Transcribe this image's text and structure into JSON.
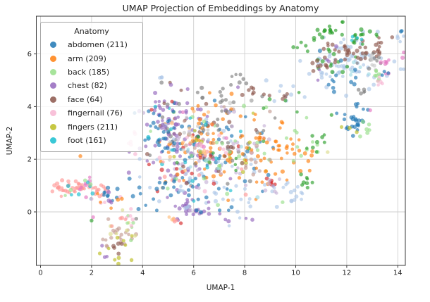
{
  "title": "UMAP Projection of Embeddings by Anatomy",
  "axes": {
    "xlabel": "UMAP-1",
    "ylabel": "UMAP-2",
    "x_ticks": [
      0,
      2,
      4,
      6,
      8,
      10,
      12,
      14
    ],
    "y_ticks": [
      0,
      2,
      4,
      6
    ],
    "xlim": [
      -0.18,
      14.3
    ],
    "ylim": [
      -2.03,
      7.43
    ],
    "grid": true
  },
  "legend": {
    "title": "Anatomy",
    "position": "upper left",
    "entries": [
      {
        "label": "abdomen (211)",
        "color": "#1f77b4"
      },
      {
        "label": "arm (209)",
        "color": "#ff7f0e"
      },
      {
        "label": "back (185)",
        "color": "#98df8a"
      },
      {
        "label": "chest (82)",
        "color": "#9467bd"
      },
      {
        "label": "face (64)",
        "color": "#8c564b"
      },
      {
        "label": "fingernail (76)",
        "color": "#f7b6d2"
      },
      {
        "label": "fingers (211)",
        "color": "#bcbd22"
      },
      {
        "label": "foot (161)",
        "color": "#17becf"
      }
    ]
  },
  "chart_data": {
    "type": "scatter",
    "title": "UMAP Projection of Embeddings by Anatomy",
    "xlabel": "UMAP-1",
    "ylabel": "UMAP-2",
    "xlim": [
      -0.18,
      14.3
    ],
    "ylim": [
      -2.03,
      7.43
    ],
    "point_style": {
      "radius": 2.6,
      "opacity": 0.65
    },
    "palette": {
      "blue": "#1f77b4",
      "lightblue": "#aec7e8",
      "orange": "#ff7f0e",
      "lightorange": "#ffbb78",
      "green": "#2ca02c",
      "lightgreen": "#98df8a",
      "red": "#d62728",
      "salmon": "#ff9896",
      "purple": "#9467bd",
      "lightpurple": "#c5b0d5",
      "brown": "#8c564b",
      "tan": "#c49c94",
      "magenta": "#e377c2",
      "lightpink": "#f7b6d2",
      "gray": "#7f7f7f",
      "lightgray": "#c7c7c7",
      "olive": "#bcbd22",
      "lightolive": "#dbdb8d",
      "cyan": "#17becf",
      "lightcyan": "#9edae5"
    },
    "clusters": [
      {
        "c": "salmon",
        "n": 38,
        "x": 1.15,
        "y": 0.95,
        "rx": 0.5,
        "ry": 0.16
      },
      {
        "c": "salmon",
        "n": 12,
        "x": 2.35,
        "y": 0.8,
        "rx": 0.22,
        "ry": 0.18
      },
      {
        "c": "magenta",
        "n": 8,
        "x": 1.95,
        "y": 1.05,
        "rx": 0.18,
        "ry": 0.22
      },
      {
        "c": "cyan",
        "n": 7,
        "x": 1.5,
        "y": 0.9,
        "rx": 0.55,
        "ry": 0.18
      },
      {
        "c": "lightgreen",
        "n": 4,
        "x": 1.35,
        "y": 0.85,
        "rx": 0.45,
        "ry": 0.2
      },
      {
        "c": "blue",
        "n": 9,
        "x": 2.75,
        "y": 0.62,
        "rx": 0.2,
        "ry": 0.16
      },
      {
        "c": "lightpink",
        "n": 6,
        "x": 2.55,
        "y": 0.42,
        "rx": 0.45,
        "ry": 0.28
      },
      {
        "c": "orange",
        "n": 5,
        "x": 2.55,
        "y": 0.25,
        "rx": 0.4,
        "ry": 0.45
      },
      {
        "c": "purple",
        "n": 4,
        "x": 2.62,
        "y": 0.55,
        "rx": 0.28,
        "ry": 0.3
      },
      {
        "c": "tan",
        "n": 20,
        "x": 3.0,
        "y": -1.0,
        "rx": 0.33,
        "ry": 0.4
      },
      {
        "c": "olive",
        "n": 10,
        "x": 2.95,
        "y": -1.15,
        "rx": 0.28,
        "ry": 0.38
      },
      {
        "c": "lightolive",
        "n": 7,
        "x": 3.15,
        "y": -0.65,
        "rx": 0.28,
        "ry": 0.32
      },
      {
        "c": "brown",
        "n": 5,
        "x": 2.95,
        "y": -1.25,
        "rx": 0.22,
        "ry": 0.28
      },
      {
        "c": "purple",
        "n": 3,
        "x": 2.5,
        "y": -1.42,
        "rx": 0.12,
        "ry": 0.2
      },
      {
        "c": "lightgreen",
        "n": 5,
        "x": 3.3,
        "y": -0.45,
        "rx": 0.28,
        "ry": 0.28
      },
      {
        "c": "lightpink",
        "n": 5,
        "x": 3.5,
        "y": -0.32,
        "rx": 0.28,
        "ry": 0.22
      },
      {
        "c": "salmon",
        "n": 4,
        "x": 3.1,
        "y": -0.3,
        "rx": 0.35,
        "ry": 0.18
      },
      {
        "c": "purple",
        "n": 65,
        "x": 5.6,
        "y": 2.6,
        "rx": 0.95,
        "ry": 0.95
      },
      {
        "c": "purple",
        "n": 25,
        "x": 5.9,
        "y": 0.15,
        "rx": 0.5,
        "ry": 0.28
      },
      {
        "c": "blue",
        "n": 72,
        "x": 6.3,
        "y": 2.2,
        "rx": 1.25,
        "ry": 0.95
      },
      {
        "c": "orange",
        "n": 65,
        "x": 6.9,
        "y": 2.3,
        "rx": 1.15,
        "ry": 0.85
      },
      {
        "c": "gray",
        "n": 42,
        "x": 6.6,
        "y": 2.8,
        "rx": 1.15,
        "ry": 0.95
      },
      {
        "c": "lightpurple",
        "n": 42,
        "x": 6.5,
        "y": 2.2,
        "rx": 1.25,
        "ry": 0.95
      },
      {
        "c": "lightblue",
        "n": 42,
        "x": 6.7,
        "y": 1.8,
        "rx": 1.25,
        "ry": 0.85
      },
      {
        "c": "brown",
        "n": 28,
        "x": 6.6,
        "y": 3.0,
        "rx": 1.15,
        "ry": 0.85
      },
      {
        "c": "lightgreen",
        "n": 28,
        "x": 6.9,
        "y": 2.4,
        "rx": 1.15,
        "ry": 0.95
      },
      {
        "c": "cyan",
        "n": 16,
        "x": 6.2,
        "y": 2.2,
        "rx": 1.05,
        "ry": 0.85
      },
      {
        "c": "red",
        "n": 13,
        "x": 5.9,
        "y": 2.5,
        "rx": 0.95,
        "ry": 0.95
      },
      {
        "c": "olive",
        "n": 12,
        "x": 7.0,
        "y": 2.2,
        "rx": 1.15,
        "ry": 0.85
      },
      {
        "c": "salmon",
        "n": 11,
        "x": 6.0,
        "y": 1.6,
        "rx": 0.95,
        "ry": 0.65
      },
      {
        "c": "lightpink",
        "n": 11,
        "x": 6.3,
        "y": 2.0,
        "rx": 1.15,
        "ry": 0.85
      },
      {
        "c": "tan",
        "n": 11,
        "x": 6.8,
        "y": 2.6,
        "rx": 1.05,
        "ry": 0.85
      },
      {
        "c": "magenta",
        "n": 7,
        "x": 6.2,
        "y": 2.1,
        "rx": 0.95,
        "ry": 0.75
      },
      {
        "c": "lightcyan",
        "n": 7,
        "x": 6.4,
        "y": 1.9,
        "rx": 1.05,
        "ry": 0.75
      },
      {
        "c": "green",
        "n": 9,
        "x": 7.2,
        "y": 2.6,
        "rx": 0.95,
        "ry": 0.85
      },
      {
        "c": "lightorange",
        "n": 14,
        "x": 6.6,
        "y": 2.4,
        "rx": 1.15,
        "ry": 0.85
      },
      {
        "c": "lightgray",
        "n": 11,
        "x": 6.7,
        "y": 2.9,
        "rx": 1.05,
        "ry": 0.85
      },
      {
        "c": "purple",
        "n": 28,
        "x": 4.8,
        "y": 3.7,
        "rx": 0.45,
        "ry": 0.5
      },
      {
        "c": "blue",
        "n": 16,
        "x": 4.7,
        "y": 3.3,
        "rx": 0.45,
        "ry": 0.55
      },
      {
        "c": "gray",
        "n": 7,
        "x": 7.7,
        "y": 5.1,
        "rx": 0.16,
        "ry": 0.13
      },
      {
        "c": "brown",
        "n": 5,
        "x": 8.35,
        "y": 4.55,
        "rx": 0.18,
        "ry": 0.1
      },
      {
        "c": "lightblue",
        "n": 3,
        "x": 4.78,
        "y": 5.1,
        "rx": 0.1,
        "ry": 0.07
      },
      {
        "c": "gray",
        "n": 11,
        "x": 7.0,
        "y": 4.3,
        "rx": 0.75,
        "ry": 0.35
      },
      {
        "c": "orange",
        "n": 9,
        "x": 6.8,
        "y": 4.0,
        "rx": 0.85,
        "ry": 0.35
      },
      {
        "c": "blue",
        "n": 18,
        "x": 5.3,
        "y": 0.8,
        "rx": 0.75,
        "ry": 0.38
      },
      {
        "c": "lightblue",
        "n": 9,
        "x": 6.2,
        "y": 0.4,
        "rx": 0.65,
        "ry": 0.3
      },
      {
        "c": "lightpink",
        "n": 5,
        "x": 3.6,
        "y": 2.85,
        "rx": 0.22,
        "ry": 0.22
      },
      {
        "c": "salmon",
        "n": 3,
        "x": 5.3,
        "y": -0.3,
        "rx": 0.12,
        "ry": 0.08
      },
      {
        "c": "lightorange",
        "n": 3,
        "x": 5.12,
        "y": -0.25,
        "rx": 0.1,
        "ry": 0.08
      },
      {
        "c": "orange",
        "n": 42,
        "x": 9.3,
        "y": 2.1,
        "rx": 0.75,
        "ry": 0.6
      },
      {
        "c": "lightblue",
        "n": 16,
        "x": 9.8,
        "y": 0.75,
        "rx": 0.45,
        "ry": 0.22
      },
      {
        "c": "red",
        "n": 6,
        "x": 9.05,
        "y": 1.15,
        "rx": 0.1,
        "ry": 0.13
      },
      {
        "c": "green",
        "n": 8,
        "x": 10.25,
        "y": 1.05,
        "rx": 0.22,
        "ry": 0.18
      },
      {
        "c": "lightgreen",
        "n": 11,
        "x": 10.5,
        "y": 2.7,
        "rx": 0.45,
        "ry": 0.55
      },
      {
        "c": "green",
        "n": 9,
        "x": 10.95,
        "y": 2.95,
        "rx": 0.3,
        "ry": 0.5
      },
      {
        "c": "lightpurple",
        "n": 7,
        "x": 9.2,
        "y": 1.0,
        "rx": 0.35,
        "ry": 0.28
      },
      {
        "c": "tan",
        "n": 6,
        "x": 8.5,
        "y": 1.65,
        "rx": 0.28,
        "ry": 0.22
      },
      {
        "c": "blue",
        "n": 26,
        "x": 12.35,
        "y": 3.55,
        "rx": 0.33,
        "ry": 0.33
      },
      {
        "c": "olive",
        "n": 3,
        "x": 12.2,
        "y": 3.3,
        "rx": 0.18,
        "ry": 0.12
      },
      {
        "c": "lightgreen",
        "n": 6,
        "x": 12.5,
        "y": 3.3,
        "rx": 0.28,
        "ry": 0.22
      },
      {
        "c": "lightblue",
        "n": 80,
        "x": 12.2,
        "y": 5.6,
        "rx": 0.9,
        "ry": 0.55
      },
      {
        "c": "green",
        "n": 32,
        "x": 11.5,
        "y": 6.2,
        "rx": 0.75,
        "ry": 0.45
      },
      {
        "c": "brown",
        "n": 28,
        "x": 12.0,
        "y": 6.05,
        "rx": 0.5,
        "ry": 0.22
      },
      {
        "c": "brown",
        "n": 14,
        "x": 13.15,
        "y": 6.3,
        "rx": 0.28,
        "ry": 0.18
      },
      {
        "c": "brown",
        "n": 8,
        "x": 10.8,
        "y": 5.6,
        "rx": 0.22,
        "ry": 0.18
      },
      {
        "c": "blue",
        "n": 12,
        "x": 11.7,
        "y": 5.3,
        "rx": 0.65,
        "ry": 0.45
      },
      {
        "c": "gray",
        "n": 9,
        "x": 12.9,
        "y": 5.75,
        "rx": 0.22,
        "ry": 0.18
      },
      {
        "c": "lightgray",
        "n": 6,
        "x": 13.05,
        "y": 5.65,
        "rx": 0.13,
        "ry": 0.18
      },
      {
        "c": "magenta",
        "n": 8,
        "x": 13.55,
        "y": 5.55,
        "rx": 0.1,
        "ry": 0.16
      },
      {
        "c": "blue",
        "n": 3,
        "x": 13.45,
        "y": 5.28,
        "rx": 0.08,
        "ry": 0.07
      },
      {
        "c": "lightgreen",
        "n": 7,
        "x": 13.2,
        "y": 5.05,
        "rx": 0.07,
        "ry": 0.22
      },
      {
        "c": "lightpink",
        "n": 5,
        "x": 13.28,
        "y": 4.95,
        "rx": 0.08,
        "ry": 0.18
      },
      {
        "c": "green",
        "n": 11,
        "x": 11.35,
        "y": 6.85,
        "rx": 0.22,
        "ry": 0.1
      },
      {
        "c": "green",
        "n": 7,
        "x": 12.55,
        "y": 6.75,
        "rx": 0.16,
        "ry": 0.13
      },
      {
        "c": "purple",
        "n": 5,
        "x": 11.3,
        "y": 5.5,
        "rx": 0.35,
        "ry": 0.35
      },
      {
        "c": "cyan",
        "n": 4,
        "x": 12.3,
        "y": 6.4,
        "rx": 0.28,
        "ry": 0.18
      },
      {
        "c": "lightcyan",
        "n": 5,
        "x": 12.1,
        "y": 5.2,
        "rx": 0.35,
        "ry": 0.28
      },
      {
        "c": "gray",
        "n": 5,
        "x": 12.6,
        "y": 4.6,
        "rx": 0.1,
        "ry": 0.08
      },
      {
        "c": "blue",
        "n": 2,
        "x": 14.15,
        "y": 6.85,
        "rx": 0.07,
        "ry": 0.06
      },
      {
        "c": "magenta",
        "n": 2,
        "x": 14.2,
        "y": 5.95,
        "rx": 0.05,
        "ry": 0.09
      },
      {
        "c": "lightblue",
        "n": 3,
        "x": 14.1,
        "y": 6.4,
        "rx": 0.08,
        "ry": 0.18
      },
      {
        "c": "lightblue",
        "n": 8,
        "x": 9.4,
        "y": 4.6,
        "rx": 0.45,
        "ry": 0.35
      },
      {
        "c": "green",
        "n": 5,
        "x": 9.45,
        "y": 4.35,
        "rx": 0.35,
        "ry": 0.28
      },
      {
        "c": "brown",
        "n": 4,
        "x": 9.55,
        "y": 4.4,
        "rx": 0.18,
        "ry": 0.13
      },
      {
        "c": "lightblue",
        "n": 9,
        "x": 7.8,
        "y": 0.2,
        "rx": 0.65,
        "ry": 0.35
      },
      {
        "c": "purple",
        "n": 6,
        "x": 7.6,
        "y": 0.0,
        "rx": 0.45,
        "ry": 0.28
      }
    ],
    "singletons": [
      {
        "c": "orange",
        "x": 1.56,
        "y": 2.12
      },
      {
        "c": "green",
        "x": 2.0,
        "y": -0.33
      },
      {
        "c": "magenta",
        "x": 2.06,
        "y": -0.2
      },
      {
        "c": "gray",
        "x": 3.75,
        "y": -0.26
      },
      {
        "c": "cyan",
        "x": 4.5,
        "y": 4.0
      },
      {
        "c": "red",
        "x": 4.35,
        "y": 3.88
      },
      {
        "c": "red",
        "x": 5.5,
        "y": -0.43
      },
      {
        "c": "lightolive",
        "x": 11.25,
        "y": 2.27
      },
      {
        "c": "magenta",
        "x": 12.92,
        "y": 3.86
      }
    ]
  }
}
